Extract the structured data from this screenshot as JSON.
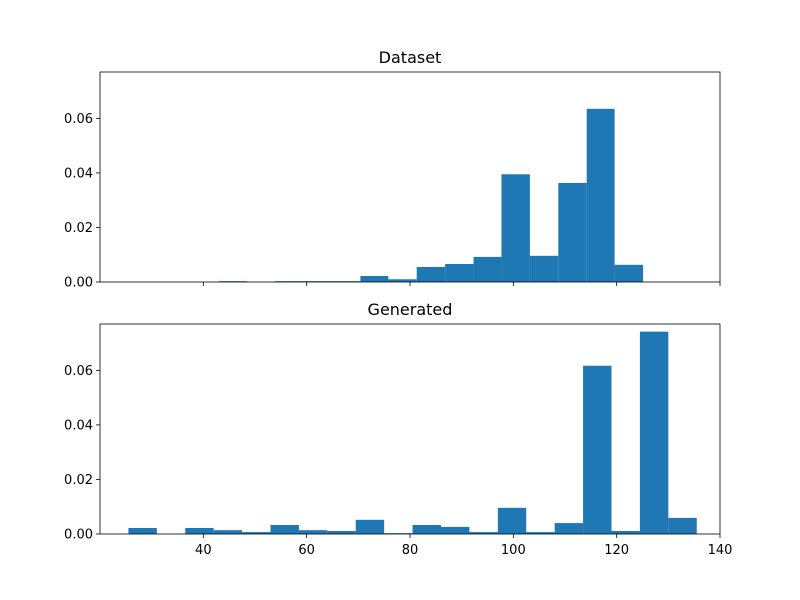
{
  "chart_data": [
    {
      "type": "bar",
      "title": "Dataset",
      "xlabel": "",
      "ylabel": "",
      "xlim": [
        20,
        140
      ],
      "ylim": [
        0,
        0.077
      ],
      "yticks": [
        "0.00",
        "0.02",
        "0.04",
        "0.06"
      ],
      "xticks": [
        "40",
        "60",
        "80",
        "100",
        "120",
        "140"
      ],
      "show_xtick_labels": false,
      "bar_color": "#1f77b4",
      "bins": [
        {
          "x0": 43.0,
          "x1": 48.5,
          "value": 0.0003
        },
        {
          "x0": 53.9,
          "x1": 59.4,
          "value": 0.0003
        },
        {
          "x0": 59.4,
          "x1": 64.9,
          "value": 0.0003
        },
        {
          "x0": 64.9,
          "x1": 70.4,
          "value": 0.0003
        },
        {
          "x0": 70.4,
          "x1": 75.8,
          "value": 0.0022
        },
        {
          "x0": 75.8,
          "x1": 81.3,
          "value": 0.001
        },
        {
          "x0": 81.3,
          "x1": 86.8,
          "value": 0.0055
        },
        {
          "x0": 86.8,
          "x1": 92.3,
          "value": 0.0066
        },
        {
          "x0": 92.3,
          "x1": 97.7,
          "value": 0.0092
        },
        {
          "x0": 97.7,
          "x1": 103.2,
          "value": 0.0395
        },
        {
          "x0": 103.2,
          "x1": 108.7,
          "value": 0.0096
        },
        {
          "x0": 108.7,
          "x1": 114.2,
          "value": 0.0363
        },
        {
          "x0": 114.2,
          "x1": 119.6,
          "value": 0.0635
        },
        {
          "x0": 119.6,
          "x1": 125.1,
          "value": 0.0063
        }
      ]
    },
    {
      "type": "bar",
      "title": "Generated",
      "xlabel": "",
      "ylabel": "",
      "xlim": [
        20,
        140
      ],
      "ylim": [
        0,
        0.077
      ],
      "yticks": [
        "0.00",
        "0.02",
        "0.04",
        "0.06"
      ],
      "xticks": [
        "40",
        "60",
        "80",
        "100",
        "120",
        "140"
      ],
      "show_xtick_labels": true,
      "bar_color": "#1f77b4",
      "bins": [
        {
          "x0": 25.5,
          "x1": 31.0,
          "value": 0.0022
        },
        {
          "x0": 36.5,
          "x1": 42.0,
          "value": 0.0022
        },
        {
          "x0": 42.0,
          "x1": 47.5,
          "value": 0.0014
        },
        {
          "x0": 47.5,
          "x1": 53.0,
          "value": 0.0007
        },
        {
          "x0": 53.0,
          "x1": 58.5,
          "value": 0.0033
        },
        {
          "x0": 58.5,
          "x1": 64.0,
          "value": 0.0014
        },
        {
          "x0": 64.0,
          "x1": 69.5,
          "value": 0.0011
        },
        {
          "x0": 69.5,
          "x1": 75.0,
          "value": 0.0052
        },
        {
          "x0": 75.0,
          "x1": 80.5,
          "value": 0.0003
        },
        {
          "x0": 80.5,
          "x1": 86.0,
          "value": 0.0033
        },
        {
          "x0": 86.0,
          "x1": 91.5,
          "value": 0.0026
        },
        {
          "x0": 91.5,
          "x1": 97.0,
          "value": 0.0007
        },
        {
          "x0": 97.0,
          "x1": 102.5,
          "value": 0.0096
        },
        {
          "x0": 102.5,
          "x1": 108.0,
          "value": 0.0007
        },
        {
          "x0": 108.0,
          "x1": 113.5,
          "value": 0.004
        },
        {
          "x0": 113.5,
          "x1": 119.0,
          "value": 0.0617
        },
        {
          "x0": 119.0,
          "x1": 124.5,
          "value": 0.0011
        },
        {
          "x0": 124.5,
          "x1": 130.0,
          "value": 0.0742
        },
        {
          "x0": 130.0,
          "x1": 135.5,
          "value": 0.0059
        }
      ]
    }
  ]
}
